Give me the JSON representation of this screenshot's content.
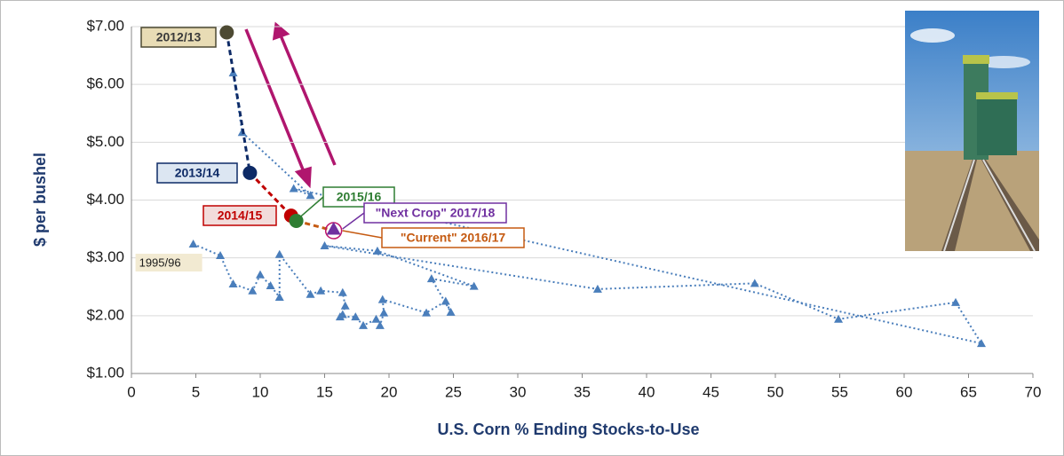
{
  "chart_data": {
    "type": "scatter",
    "xlabel": "U.S. Corn % Ending Stocks-to-Use",
    "ylabel": "$ per bushel",
    "xlim": [
      0,
      70
    ],
    "ylim": [
      1,
      7
    ],
    "xticks": [
      0,
      5,
      10,
      15,
      20,
      25,
      30,
      35,
      40,
      45,
      50,
      55,
      60,
      65,
      70
    ],
    "yticks": [
      {
        "value": 1,
        "label": "$1.00"
      },
      {
        "value": 2,
        "label": "$2.00"
      },
      {
        "value": 3,
        "label": "$3.00"
      },
      {
        "value": 4,
        "label": "$4.00"
      },
      {
        "value": 5,
        "label": "$5.00"
      },
      {
        "value": 6,
        "label": "$6.00"
      },
      {
        "value": 7,
        "label": "$7.00"
      }
    ],
    "grid": true,
    "series": [
      {
        "color": "#4a7ebb",
        "x": [
          4.8,
          6.9,
          7.9,
          9.4,
          10.0,
          10.8,
          11.5,
          11.5,
          13.9,
          14.7,
          16.4,
          16.6,
          16.4,
          16.2,
          17.4,
          18.0,
          19.0,
          19.3,
          19.6,
          19.5,
          22.9,
          24.4,
          24.8,
          23.3,
          26.6,
          19.1,
          15.0,
          36.2,
          48.4,
          54.9,
          64.0,
          66.0,
          12.6,
          13.9,
          8.6,
          7.9
        ],
        "values": [
          3.24,
          3.04,
          2.55,
          2.43,
          2.71,
          2.52,
          2.32,
          3.06,
          2.37,
          2.43,
          2.4,
          2.17,
          2.02,
          1.98,
          1.98,
          1.83,
          1.94,
          1.83,
          2.05,
          2.28,
          2.05,
          2.25,
          2.06,
          2.64,
          2.51,
          3.12,
          3.21,
          2.46,
          2.56,
          1.94,
          2.23,
          1.52,
          4.2,
          4.08,
          5.17,
          6.2
        ],
        "labels": [
          "1995/96",
          null,
          null,
          null,
          null,
          null,
          null,
          null,
          null,
          null,
          null,
          null,
          null,
          null,
          null,
          null,
          null,
          null,
          null,
          null,
          null,
          null,
          null,
          null,
          null,
          null,
          null,
          null,
          null,
          null,
          null,
          null,
          null,
          null,
          null,
          null
        ]
      }
    ],
    "highlights": {
      "x": [
        7.4,
        9.2,
        12.4,
        12.8,
        15.7,
        15.7
      ],
      "values": [
        6.9,
        4.47,
        3.73,
        3.64,
        3.47,
        3.5
      ],
      "labels": [
        "2012/13",
        "2013/14",
        "2014/15",
        "2015/16",
        "\"Current\" 2016/17",
        "\"Next Crop\" 2017/18"
      ],
      "colors": [
        "#4d4a33",
        "#0d2a66",
        "#c00000",
        "#2e7d32",
        "#c55a11",
        "#7030a0"
      ],
      "segment_colors": [
        "#0d2a66",
        "#c00000",
        null,
        "#c55a11",
        null
      ]
    }
  }
}
